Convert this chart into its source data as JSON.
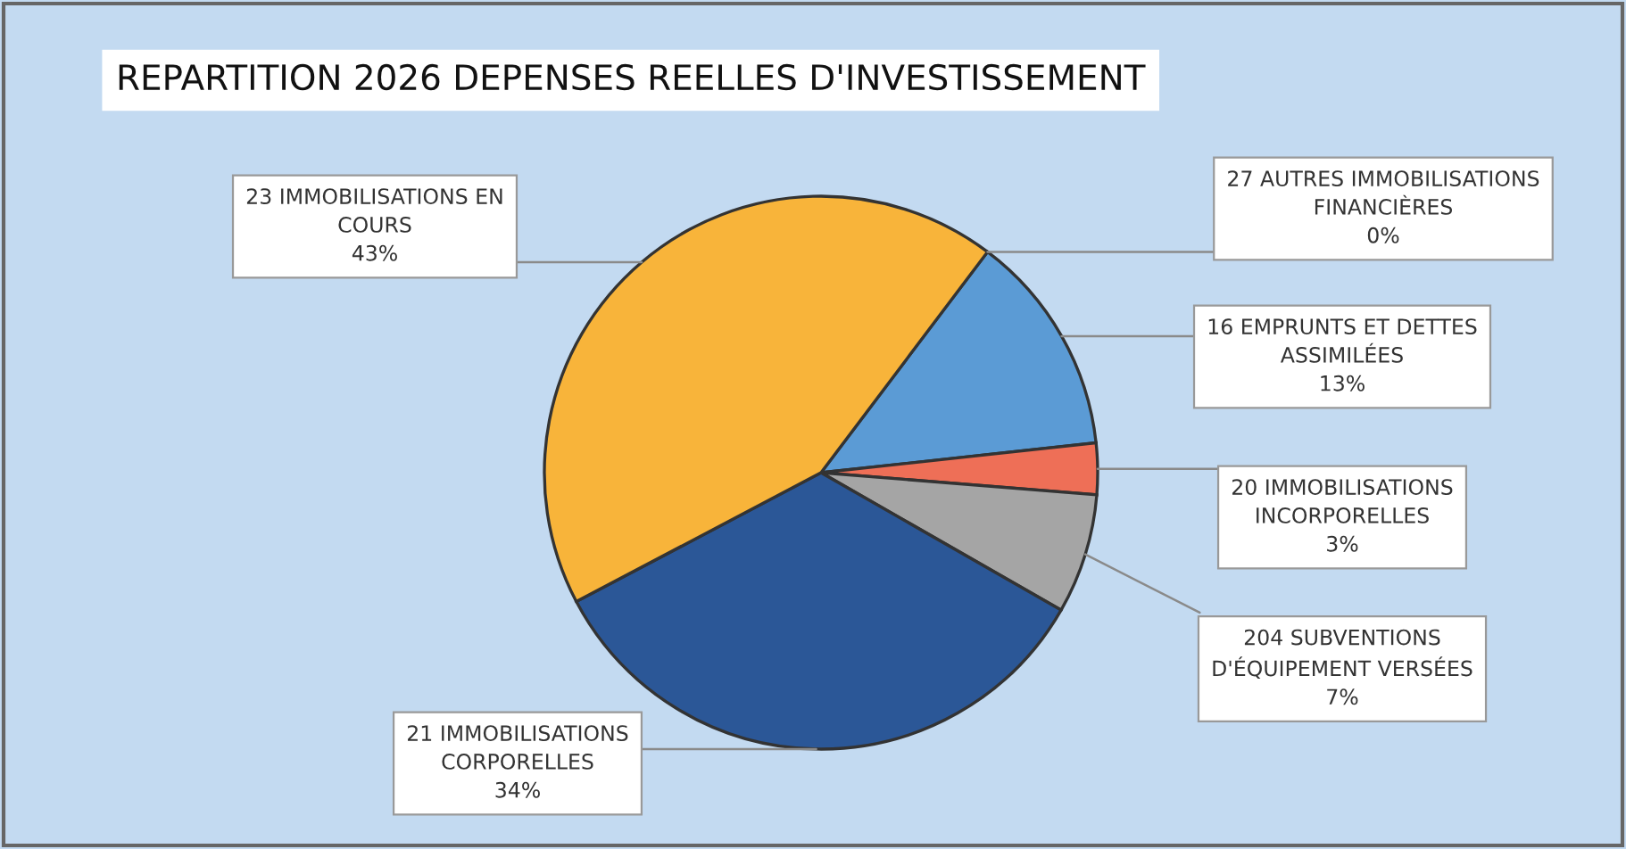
{
  "chart_data": {
    "type": "pie",
    "title": "REPARTITION 2026 DEPENSES REELLES D'INVESTISSEMENT",
    "categories": [
      "27 AUTRES IMMOBILISATIONS\nFINANCIÈRES",
      "16 EMPRUNTS ET DETTES\nASSIMILÉES",
      "20 IMMOBILISATIONS\nINCORPORELLES",
      "204 SUBVENTIONS\nD'ÉQUIPEMENT VERSÉES",
      "21 IMMOBILISATIONS\nCORPORELLES",
      "23 IMMOBILISATIONS EN\nCOURS"
    ],
    "values": [
      0,
      13,
      3,
      7,
      34,
      43
    ],
    "value_labels": [
      "0%",
      "13%",
      "3%",
      "7%",
      "34%",
      "43%"
    ],
    "colors": [
      "#a9c4e4",
      "#5b9bd5",
      "#ee6f57",
      "#a5a5a5",
      "#2b5797",
      "#f8b43a"
    ]
  }
}
